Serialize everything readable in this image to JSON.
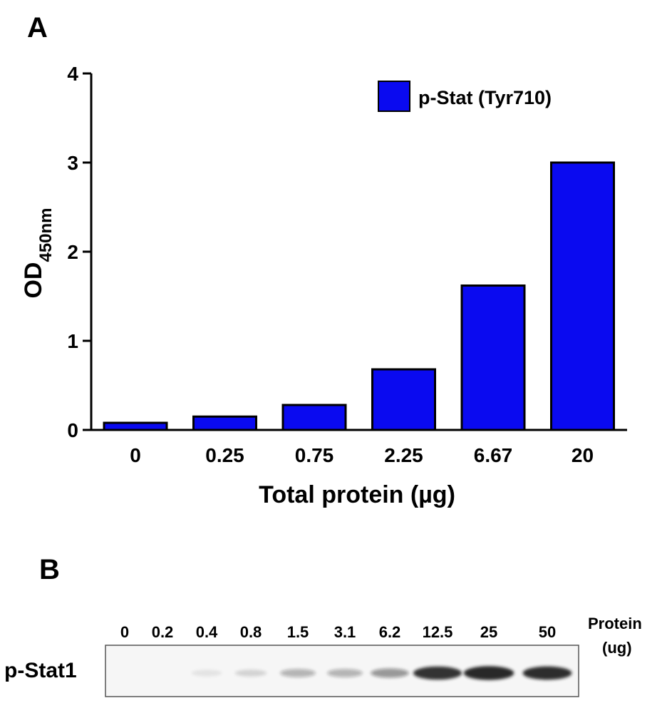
{
  "panel_a": {
    "letter": "A",
    "ylabel_main": "OD",
    "ylabel_sub": "450nm",
    "xlabel": "Total protein (µg)",
    "legend_label": "p-Stat (Tyr710)"
  },
  "panel_b": {
    "letter": "B",
    "row_label": "p-Stat1",
    "header_label_line1": "Protein",
    "header_label_line2": "(ug)",
    "lanes": [
      "0",
      "0.2",
      "0.4",
      "0.8",
      "1.5",
      "3.1",
      "6.2",
      "12.5",
      "25",
      "50"
    ],
    "band_intensity": [
      0,
      0,
      0.08,
      0.14,
      0.3,
      0.3,
      0.42,
      0.88,
      0.95,
      0.9
    ]
  },
  "chart_data": {
    "type": "bar",
    "categories": [
      "0",
      "0.25",
      "0.75",
      "2.25",
      "6.67",
      "20"
    ],
    "series": [
      {
        "name": "p-Stat (Tyr710)",
        "values": [
          0.08,
          0.15,
          0.28,
          0.68,
          1.62,
          3.0
        ]
      }
    ],
    "bar_color": "#0a0af0",
    "xlabel": "Total protein (µg)",
    "ylabel": "OD450nm",
    "ylim": [
      0,
      4
    ],
    "yticks": [
      0,
      1,
      2,
      3,
      4
    ],
    "grid": false,
    "legend": "top-right"
  }
}
